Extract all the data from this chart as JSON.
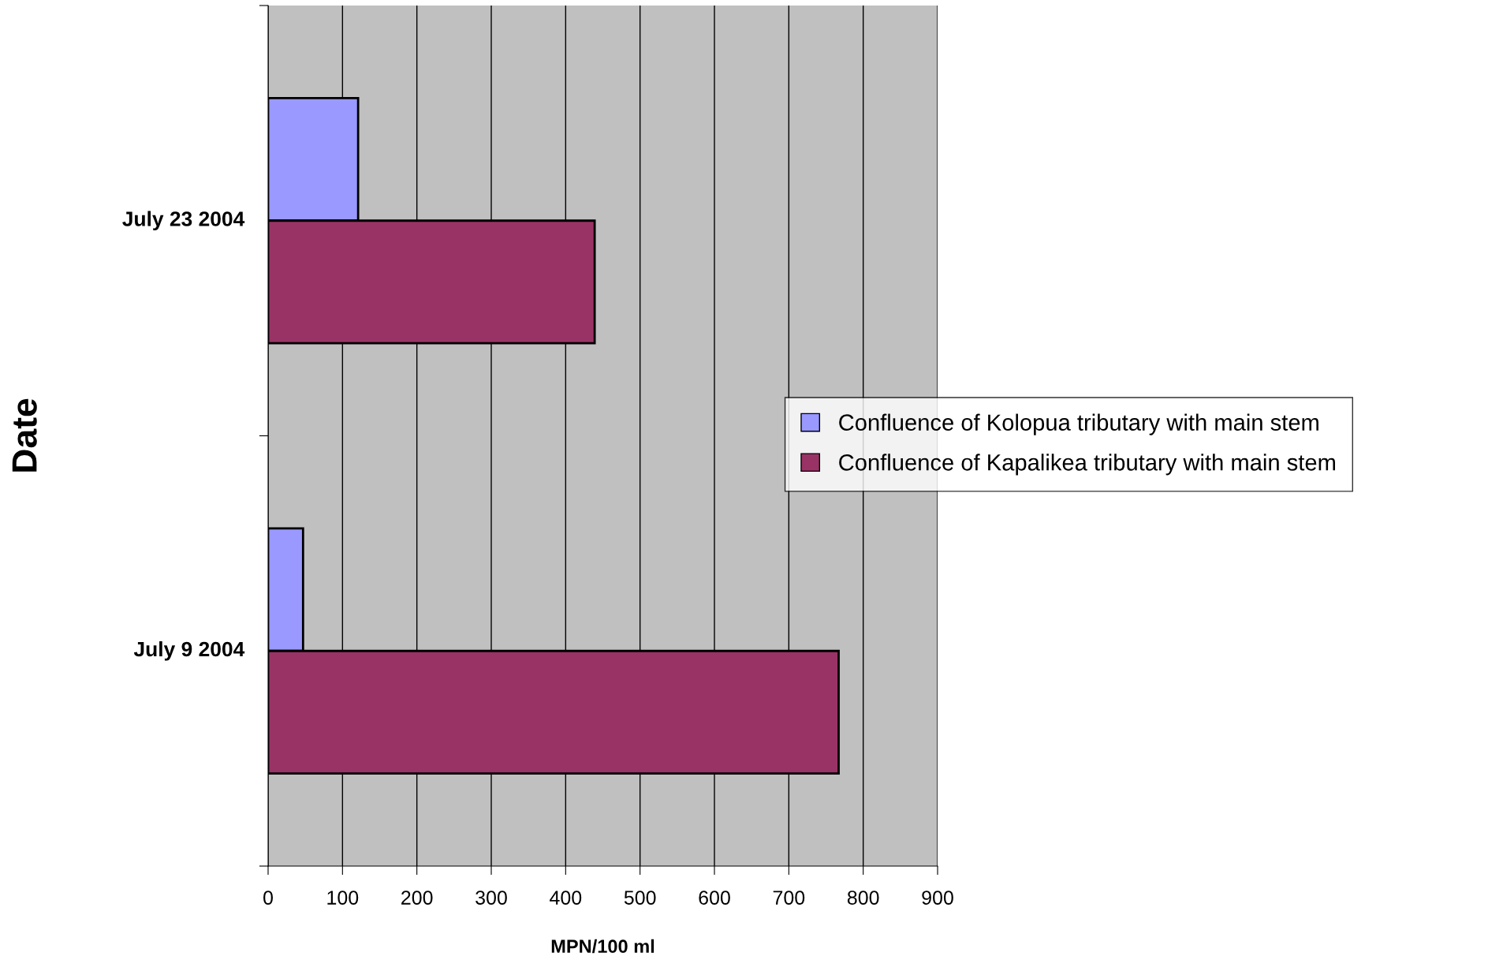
{
  "chart_data": {
    "type": "bar",
    "orientation": "horizontal",
    "xlabel": "MPN/100 ml",
    "ylabel": "Date",
    "categories": [
      "July 23 2004",
      "July 9 2004"
    ],
    "series": [
      {
        "name": "Confluence of Kolopua tributary with main stem",
        "color": "#9999ff",
        "values": [
          121,
          47
        ]
      },
      {
        "name": "Confluence of Kapalikea tributary with main stem",
        "color": "#993366",
        "values": [
          439,
          767
        ]
      }
    ],
    "xlim": [
      0,
      900
    ],
    "xticks": [
      0,
      100,
      200,
      300,
      400,
      500,
      600,
      700,
      800,
      900
    ],
    "grid": "x",
    "legend": "right"
  }
}
